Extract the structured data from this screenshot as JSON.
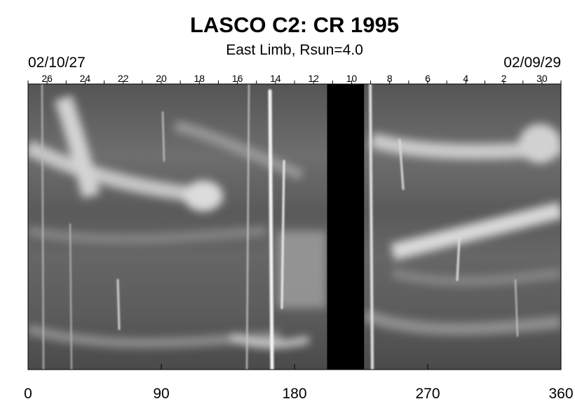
{
  "chart_data": {
    "type": "heatmap",
    "title": "LASCO C2: CR 1995",
    "subtitle": "East Limb, Rsun=4.0",
    "start_date": "02/10/27",
    "end_date": "02/09/29",
    "xlim": [
      0,
      360
    ],
    "x_ticks": [
      0,
      90,
      180,
      270,
      360
    ],
    "top_axis_day_labels": [
      26,
      24,
      22,
      20,
      18,
      16,
      14,
      12,
      10,
      8,
      6,
      4,
      2,
      30
    ],
    "data_gap": [
      202,
      227
    ],
    "colormap": "grayscale",
    "gap_color": "#000000"
  }
}
